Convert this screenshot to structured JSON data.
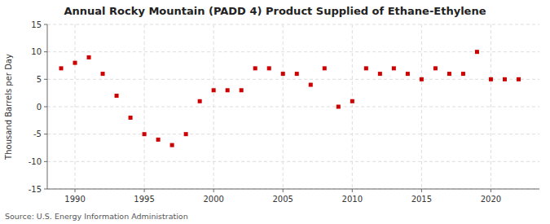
{
  "chart_data": {
    "type": "scatter",
    "title": "Annual Rocky Mountain (PADD 4) Product Supplied of Ethane-Ethylene",
    "ylabel": "Thousand Barrels per Day",
    "annotations": [
      "Source: U.S. Energy Information Administration"
    ],
    "x": [
      1989,
      1990,
      1991,
      1992,
      1993,
      1994,
      1995,
      1996,
      1997,
      1998,
      1999,
      2000,
      2001,
      2002,
      2003,
      2004,
      2005,
      2006,
      2007,
      2008,
      2009,
      2010,
      2011,
      2012,
      2013,
      2014,
      2015,
      2016,
      2017,
      2018,
      2019,
      2020,
      2021,
      2022
    ],
    "values": [
      7,
      8,
      9,
      6,
      2,
      -2,
      -5,
      -6,
      -7,
      -5,
      1,
      3,
      3,
      3,
      7,
      7,
      6,
      6,
      4,
      7,
      0,
      1,
      7,
      6,
      7,
      6,
      5,
      7,
      6,
      6,
      10,
      5,
      5,
      5
    ],
    "color": "#cc0000",
    "marker": "square",
    "xlim": [
      1988.0,
      2023.5
    ],
    "xticks": [
      1990,
      1995,
      2000,
      2005,
      2010,
      2015,
      2020
    ],
    "ylim": [
      -15,
      15
    ],
    "yticks": [
      -15,
      -10,
      -5,
      0,
      5,
      10,
      15
    ],
    "grid": true
  }
}
